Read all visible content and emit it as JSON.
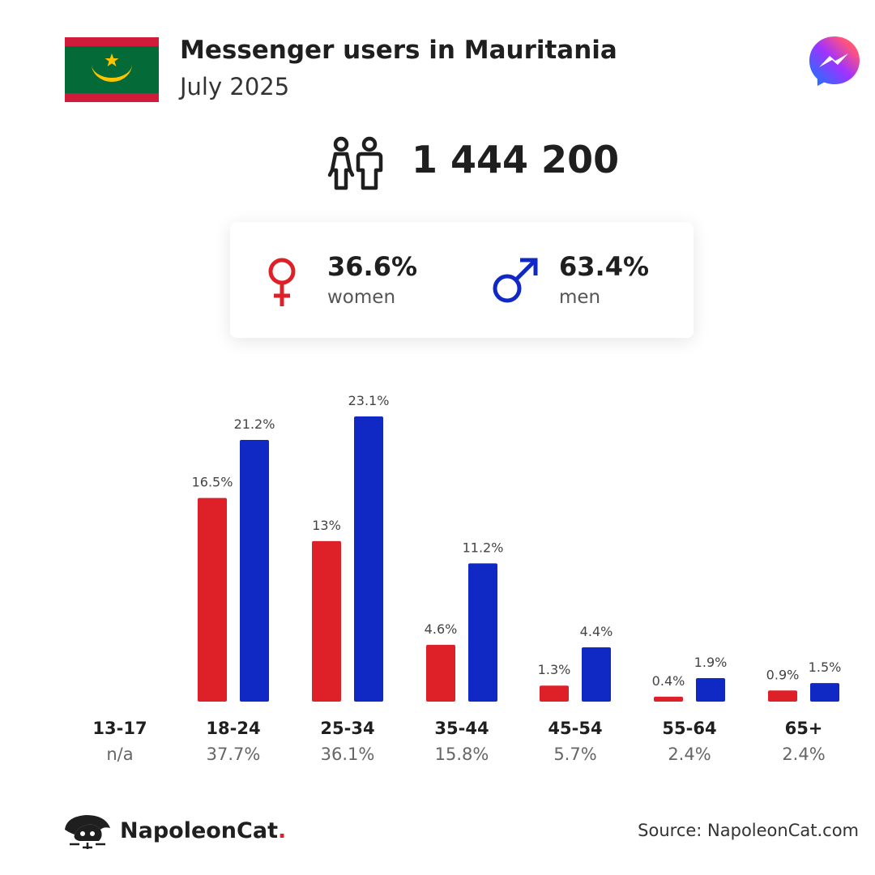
{
  "header": {
    "title": "Messenger users in Mauritania",
    "subtitle": "July 2025"
  },
  "total": {
    "value": "1 444 200",
    "icon": "people-icon"
  },
  "gender": {
    "women": {
      "value": "36.6%",
      "label": "women",
      "icon": "female-symbol-icon",
      "color": "#de2128"
    },
    "men": {
      "value": "63.4%",
      "label": "men",
      "icon": "male-symbol-icon",
      "color": "#1029c4"
    }
  },
  "colors": {
    "women": "#de2128",
    "men": "#1029c4",
    "flag_green": "#046a38",
    "flag_red": "#d01c3a",
    "flag_gold": "#ffc400"
  },
  "chart_data": {
    "type": "bar",
    "categories": [
      "13-17",
      "18-24",
      "25-34",
      "35-44",
      "45-54",
      "55-64",
      "65+"
    ],
    "category_totals": [
      "n/a",
      "37.7%",
      "36.1%",
      "15.8%",
      "5.7%",
      "2.4%",
      "2.4%"
    ],
    "series": [
      {
        "key": "women",
        "color": "#de2128",
        "values": [
          null,
          16.5,
          13,
          4.6,
          1.3,
          0.4,
          0.9
        ],
        "labels": [
          "",
          "16.5%",
          "13%",
          "4.6%",
          "1.3%",
          "0.4%",
          "0.9%"
        ]
      },
      {
        "key": "men",
        "color": "#1029c4",
        "values": [
          null,
          21.2,
          23.1,
          11.2,
          4.4,
          1.9,
          1.5
        ],
        "labels": [
          "",
          "21.2%",
          "23.1%",
          "11.2%",
          "4.4%",
          "1.9%",
          "1.5%"
        ]
      }
    ],
    "ylim": [
      0,
      23.1
    ],
    "grid": false
  },
  "footer": {
    "brand_name": "NapoleonCat",
    "brand_dot": ".",
    "source": "Source: NapoleonCat.com"
  }
}
